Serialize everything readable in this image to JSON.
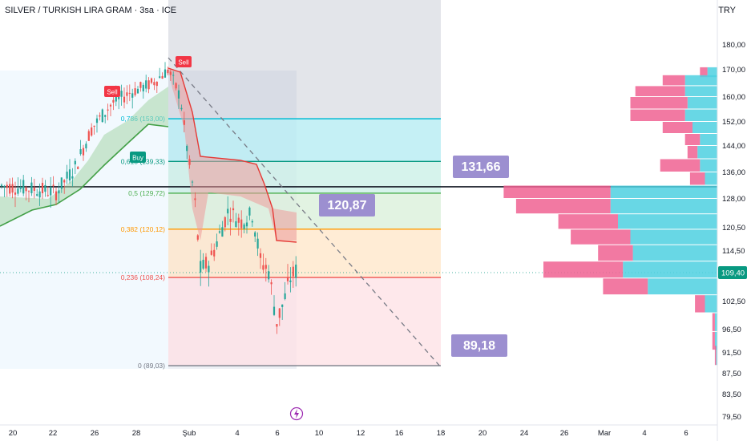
{
  "header": {
    "symbol_line": "SILVER / TURKISH LIRA GRAM · 3sa · ICE",
    "currency": "TRY"
  },
  "colors": {
    "bull": "#26a69a",
    "bear": "#ef5350",
    "vp_pink": "#f06292",
    "vp_cyan": "#4dd0e1",
    "fib_0": "#787b86",
    "fib_0236": "#ef5350",
    "fib_0382": "#ff9800",
    "fib_05": "#4caf50",
    "fib_0618": "#089981",
    "fib_0786": "#00bcd4",
    "callout": "#9c8fd0",
    "price_tag": "#089981"
  },
  "chart_data": {
    "type": "candlestick",
    "y_axis": {
      "ticks": [
        "180,00",
        "170,00",
        "160,00",
        "152,00",
        "144,00",
        "136,00",
        "128,00",
        "120,50",
        "114,50",
        "109,40",
        "102,50",
        "96,50",
        "91,50",
        "87,50",
        "83,50",
        "79,50"
      ],
      "current_price": "109,40"
    },
    "x_axis": {
      "ticks": [
        "20",
        "22",
        "26",
        "28",
        "Şub",
        "4",
        "6",
        "10",
        "12",
        "16",
        "18",
        "20",
        "24",
        "26",
        "Mar",
        "4",
        "6"
      ]
    },
    "fib_levels": [
      {
        "ratio": 0.786,
        "price": 153.0,
        "label": "0,786 (153,00)"
      },
      {
        "ratio": 0.618,
        "price": 139.33,
        "label": "0,618 (139,33)"
      },
      {
        "ratio": 0.5,
        "price": 129.72,
        "label": "0,5 (129,72)"
      },
      {
        "ratio": 0.382,
        "price": 120.12,
        "label": "0,382 (120,12)"
      },
      {
        "ratio": 0.236,
        "price": 108.24,
        "label": "0,236 (108,24)"
      },
      {
        "ratio": 0,
        "price": 89.03,
        "label": "0 (89,03)"
      }
    ],
    "horizontal_line": {
      "price": 131.66
    },
    "callouts": [
      {
        "label": "131,66",
        "price": 131.66
      },
      {
        "label": "120,87",
        "price": 120.87
      },
      {
        "label": "89,18",
        "price": 89.18
      }
    ],
    "signals": [
      {
        "label": "Sell",
        "type": "sell"
      },
      {
        "label": "Buy",
        "type": "buy"
      },
      {
        "label": "Sell",
        "type": "sell"
      }
    ],
    "volume_profile_prices": [
      169,
      166,
      162,
      158,
      154,
      150,
      146,
      142,
      138,
      134,
      130,
      126,
      122,
      118,
      114,
      110,
      106,
      102,
      98,
      94,
      91
    ],
    "volume_profile_pink": [
      3,
      9,
      20,
      23,
      22,
      12,
      6,
      4,
      16,
      6,
      43,
      38,
      24,
      24,
      14,
      32,
      18,
      4,
      1,
      1,
      0.5
    ],
    "volume_profile_cyan": [
      4,
      13,
      13,
      12,
      13,
      10,
      7,
      8,
      7,
      5,
      43,
      43,
      40,
      35,
      34,
      38,
      28,
      5,
      1,
      1,
      0.5
    ]
  }
}
